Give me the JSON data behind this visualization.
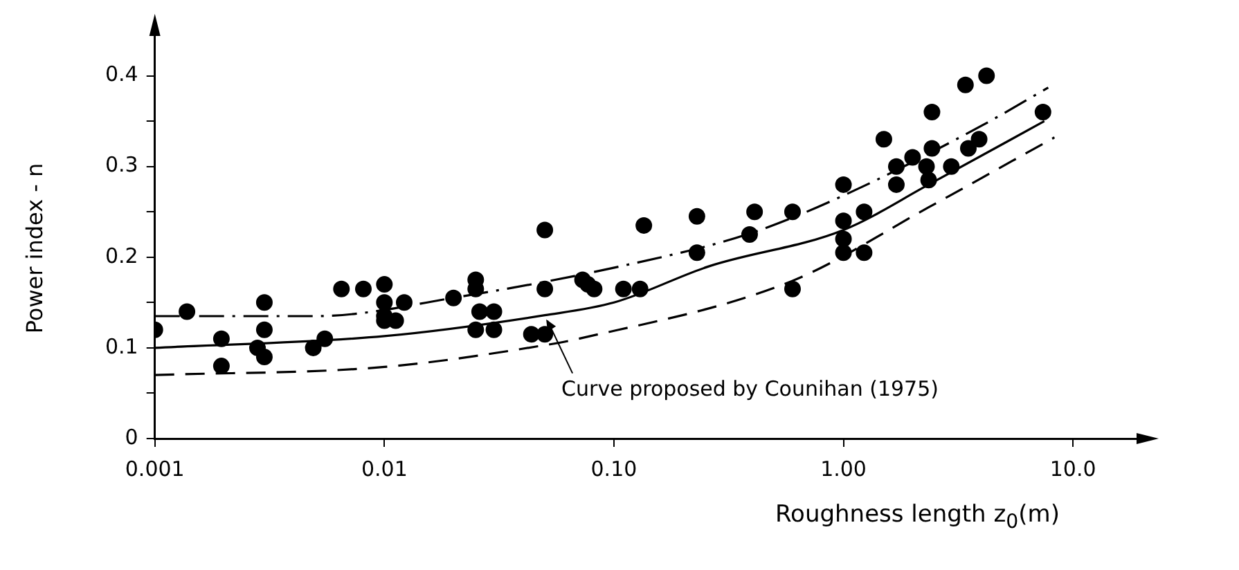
{
  "chart_data": {
    "type": "scatter",
    "xlabel": "Roughness length z$_{0}$(m)",
    "ylabel": "Power index - n",
    "log": "x",
    "xlim": [
      0.001,
      20
    ],
    "ylim": [
      0,
      0.45
    ],
    "xticks": [
      0.001,
      0.01,
      {
        "value": 0.1,
        "label": "0.10"
      },
      {
        "value": 1,
        "label": "1.00"
      },
      {
        "value": 10,
        "label": "10.0"
      }
    ],
    "yticks": [
      0,
      {
        "value": 0.05,
        "label": null
      },
      0.1,
      {
        "value": 0.15,
        "label": null
      },
      0.2,
      {
        "value": 0.25,
        "label": null
      },
      0.3,
      {
        "value": 0.35,
        "label": null
      },
      0.4
    ],
    "grid": false,
    "legend": false,
    "marker": "circle",
    "series": [
      {
        "color": "#000000",
        "x": [
          0.001,
          0.00138,
          0.00195,
          0.00195,
          0.003,
          0.003,
          0.0028,
          0.003,
          0.0049,
          0.0055,
          0.0065,
          0.0081,
          0.01,
          0.01,
          0.01,
          0.01,
          0.0112,
          0.0122,
          0.02,
          0.025,
          0.025,
          0.026,
          0.025,
          0.03,
          0.03,
          0.0437,
          0.05,
          0.05,
          0.05,
          0.073,
          0.077,
          0.082,
          0.11,
          0.13,
          0.135,
          0.23,
          0.23,
          0.41,
          0.39,
          0.6,
          0.6,
          1.0,
          1.0,
          1.0,
          1.0,
          1.23,
          1.23,
          1.5,
          1.7,
          1.7,
          2.0,
          2.43,
          2.43,
          2.3,
          2.35,
          2.95,
          3.5,
          3.4,
          3.9,
          4.2,
          7.4
        ],
        "values": [
          0.12,
          0.14,
          0.11,
          0.08,
          0.15,
          0.12,
          0.1,
          0.09,
          0.1,
          0.11,
          0.165,
          0.165,
          0.17,
          0.15,
          0.135,
          0.13,
          0.13,
          0.15,
          0.155,
          0.175,
          0.165,
          0.14,
          0.12,
          0.14,
          0.12,
          0.115,
          0.115,
          0.23,
          0.165,
          0.175,
          0.17,
          0.165,
          0.165,
          0.165,
          0.235,
          0.245,
          0.205,
          0.25,
          0.225,
          0.25,
          0.165,
          0.28,
          0.24,
          0.22,
          0.205,
          0.25,
          0.205,
          0.33,
          0.3,
          0.28,
          0.31,
          0.36,
          0.32,
          0.3,
          0.285,
          0.3,
          0.32,
          0.39,
          0.33,
          0.4,
          0.36
        ]
      },
      {
        "type": "line",
        "color": "#000000",
        "line_style": "dashdot",
        "marker": "none",
        "x": [
          0.001,
          0.005,
          0.022,
          0.107,
          0.39,
          1.0,
          4.0,
          7.8
        ],
        "values": [
          0.135,
          0.135,
          0.157,
          0.19,
          0.226,
          0.268,
          0.345,
          0.387
        ]
      },
      {
        "type": "line",
        "color": "#000000",
        "line_style": "solid",
        "marker": "none",
        "x": [
          0.001,
          0.01,
          0.05,
          0.1,
          0.26,
          1,
          2.35,
          7.5
        ],
        "values": [
          0.1,
          0.113,
          0.136,
          0.15,
          0.19,
          0.23,
          0.28,
          0.35
        ]
      },
      {
        "type": "line",
        "color": "#000000",
        "line_style": "dashed",
        "marker": "none",
        "x": [
          0.001,
          0.01,
          0.05,
          0.07,
          0.6,
          2.35,
          8.3
        ],
        "values": [
          0.07,
          0.079,
          0.103,
          0.11,
          0.174,
          0.255,
          0.332
        ]
      }
    ],
    "annotations": [
      {
        "text": "Curve proposed by Counihan (1975)",
        "x": 0.05,
        "y": 0.136
      }
    ]
  }
}
